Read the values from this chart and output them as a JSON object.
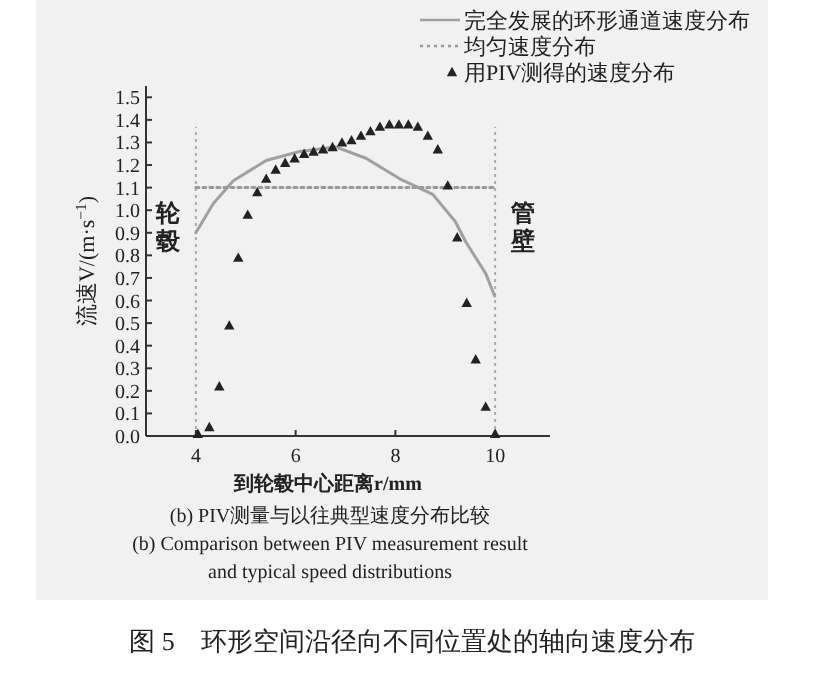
{
  "chart_data": {
    "type": "line",
    "xlabel": "到轮毂中心距离r/mm",
    "ylabel": "流速V/(m·s$^{−1}$)",
    "xlim": [
      3,
      11.1
    ],
    "ylim": [
      0,
      1.55
    ],
    "xticks": [
      4,
      6,
      8,
      10
    ],
    "yticks": [
      {
        "value": 0,
        "label": "0.0"
      },
      0.1,
      0.2,
      0.3,
      0.4,
      0.5,
      0.6,
      0.7,
      0.8,
      0.9,
      {
        "value": 1,
        "label": "1.0"
      },
      1.1,
      1.2,
      1.3,
      1.4,
      1.5
    ],
    "grid": false,
    "legend": "top right",
    "series": [
      {
        "name": "完全发展的环形通道速度分布",
        "type": "line",
        "line_style": "solid",
        "color": "#a0a0a0",
        "x": [
          4.0,
          4.35,
          4.75,
          5.41,
          6.08,
          6.8,
          7.41,
          8.08,
          8.75,
          9.2,
          9.41,
          9.81,
          9.99
        ],
        "values": [
          0.9,
          1.03,
          1.13,
          1.22,
          1.26,
          1.28,
          1.23,
          1.14,
          1.07,
          0.95,
          0.86,
          0.72,
          0.62
        ]
      },
      {
        "name": "均匀速度分布",
        "type": "line",
        "line_style": "dotted",
        "color": "#999999",
        "x": [
          4.0,
          10.0
        ],
        "values": [
          1.1,
          1.1
        ]
      },
      {
        "name": "用PIV测得的速度分布",
        "type": "scatter",
        "marker": "triangle",
        "color": "#222222",
        "x": [
          4.04,
          4.27,
          4.47,
          4.67,
          4.85,
          5.04,
          5.23,
          5.41,
          5.6,
          5.79,
          5.98,
          6.17,
          6.36,
          6.55,
          6.74,
          6.93,
          7.12,
          7.31,
          7.5,
          7.69,
          7.88,
          8.07,
          8.26,
          8.45,
          8.65,
          8.85,
          9.05,
          9.24,
          9.43,
          9.61,
          9.81,
          10.0
        ],
        "values": [
          0.01,
          0.04,
          0.22,
          0.49,
          0.79,
          0.98,
          1.08,
          1.14,
          1.18,
          1.21,
          1.23,
          1.25,
          1.26,
          1.27,
          1.28,
          1.3,
          1.31,
          1.33,
          1.35,
          1.37,
          1.38,
          1.38,
          1.38,
          1.37,
          1.33,
          1.27,
          1.11,
          0.88,
          0.59,
          0.34,
          0.13,
          0.01
        ]
      }
    ],
    "ref_lines": [
      {
        "axis": "x",
        "value": 4,
        "label": "轮毂",
        "line_style": "dotted",
        "color": "#aaaaaa"
      },
      {
        "axis": "x",
        "value": 10,
        "label": "管壁",
        "line_style": "dotted",
        "color": "#aaaaaa"
      }
    ],
    "annotations": [
      "(b) PIV测量与以往典型速度分布比较",
      "(b) Comparison between PIV measurement result",
      "and typical speed distributions",
      "图 5　环形空间沿径向不同位置处的轴向速度分布"
    ]
  }
}
